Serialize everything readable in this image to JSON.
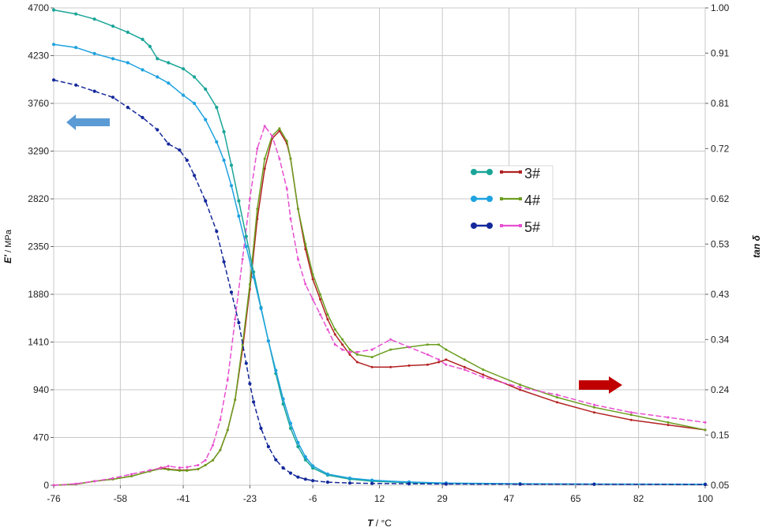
{
  "chart_data": {
    "type": "line",
    "x_axis": {
      "label_symbol": "T",
      "label_unit": "/ °C",
      "range": [
        -76,
        100
      ],
      "ticks": [
        -76,
        -58,
        -41,
        -23,
        -6,
        12,
        29,
        47,
        65,
        82,
        100
      ],
      "tick_labels": [
        "-76",
        "-58",
        "-41",
        "-23",
        "-6",
        "12",
        "29",
        "47",
        "65",
        "82",
        "100"
      ]
    },
    "y_left_axis": {
      "label_symbol": "E'",
      "label_unit": "/ MPa",
      "range": [
        0,
        4700
      ],
      "ticks": [
        0,
        470,
        940,
        1410,
        1880,
        2350,
        2820,
        3290,
        3760,
        4230,
        4700
      ],
      "tick_labels": [
        "0",
        "470",
        "940",
        "1410",
        "1880",
        "2350",
        "2820",
        "3290",
        "3760",
        "4230",
        "4700"
      ]
    },
    "y_right_axis": {
      "label": "tan δ",
      "range": [
        0.05,
        1.0
      ],
      "ticks": [
        0.05,
        0.15,
        0.24,
        0.34,
        0.43,
        0.53,
        0.62,
        0.72,
        0.81,
        0.91,
        1.0
      ],
      "tick_labels": [
        "0.05",
        "0.15",
        "0.24",
        "0.34",
        "0.43",
        "0.53",
        "0.62",
        "0.72",
        "0.81",
        "0.91",
        "1.00"
      ]
    },
    "grid": true,
    "legend": {
      "placement": "center-right",
      "entries": [
        {
          "label": "3#",
          "storage_color": "#1aa598",
          "tan_color": "#b22222"
        },
        {
          "label": "4#",
          "storage_color": "#1ea2e0",
          "tan_color": "#6b9e1f"
        },
        {
          "label": "5#",
          "storage_color": "#14289a",
          "tan_color": "#e84fd0"
        }
      ]
    },
    "annotations": [
      {
        "type": "arrow",
        "direction": "left",
        "meaning": "left axis (E')",
        "color": "#5b9bd5"
      },
      {
        "type": "arrow",
        "direction": "right",
        "meaning": "right axis (tan δ)",
        "color": "#c00000"
      }
    ],
    "storage_modulus_series": [
      {
        "name": "3#",
        "axis": "left",
        "color": "#1aa598",
        "x": [
          -76,
          -70,
          -65,
          -60,
          -56,
          -52,
          -50,
          -48,
          -45,
          -41,
          -38,
          -35,
          -32,
          -30,
          -28,
          -26,
          -24,
          -22,
          -20,
          -18,
          -16,
          -14,
          -12,
          -10,
          -8,
          -6,
          -2,
          4,
          10,
          20,
          30,
          50,
          70,
          100
        ],
        "y": [
          4680,
          4640,
          4590,
          4520,
          4460,
          4390,
          4320,
          4200,
          4160,
          4100,
          4020,
          3900,
          3720,
          3480,
          3150,
          2800,
          2450,
          2100,
          1750,
          1420,
          1100,
          800,
          560,
          380,
          250,
          170,
          100,
          60,
          40,
          25,
          18,
          12,
          10,
          8
        ]
      },
      {
        "name": "4#",
        "axis": "left",
        "color": "#1ea2e0",
        "x": [
          -76,
          -70,
          -65,
          -60,
          -56,
          -52,
          -48,
          -45,
          -41,
          -38,
          -35,
          -32,
          -30,
          -28,
          -26,
          -24,
          -22,
          -20,
          -18,
          -16,
          -14,
          -12,
          -10,
          -8,
          -6,
          -2,
          4,
          10,
          20,
          30,
          50,
          70,
          100
        ],
        "y": [
          4340,
          4310,
          4250,
          4200,
          4160,
          4090,
          4020,
          3960,
          3840,
          3760,
          3600,
          3380,
          3200,
          2950,
          2650,
          2350,
          2050,
          1740,
          1420,
          1130,
          850,
          610,
          420,
          280,
          190,
          110,
          70,
          50,
          32,
          22,
          15,
          12,
          10
        ]
      },
      {
        "name": "5#",
        "axis": "left",
        "color": "#14289a",
        "x": [
          -76,
          -70,
          -65,
          -60,
          -56,
          -52,
          -48,
          -45,
          -42,
          -40,
          -38,
          -35,
          -32,
          -30,
          -28,
          -26,
          -24,
          -23,
          -22,
          -20,
          -18,
          -16,
          -14,
          -12,
          -10,
          -8,
          -6,
          -2,
          4,
          10,
          20,
          30,
          50,
          70,
          100
        ],
        "y": [
          3990,
          3940,
          3880,
          3820,
          3720,
          3620,
          3500,
          3360,
          3300,
          3200,
          3050,
          2800,
          2500,
          2200,
          1900,
          1600,
          1200,
          1000,
          820,
          560,
          380,
          250,
          170,
          120,
          80,
          60,
          45,
          30,
          22,
          18,
          15,
          12,
          10,
          9,
          8
        ]
      }
    ],
    "tan_delta_series": [
      {
        "name": "3#",
        "axis": "right",
        "color": "#b22222",
        "x": [
          -76,
          -70,
          -65,
          -60,
          -55,
          -50,
          -47,
          -45,
          -42,
          -40,
          -37,
          -35,
          -33,
          -31,
          -29,
          -27,
          -25,
          -23,
          -21,
          -19,
          -17,
          -15,
          -13,
          -12,
          -10,
          -8,
          -6,
          -4,
          -2,
          0,
          2,
          4,
          6,
          10,
          15,
          20,
          25,
          28,
          30,
          35,
          40,
          50,
          60,
          70,
          80,
          90,
          100
        ],
        "y": [
          0.05,
          0.052,
          0.058,
          0.062,
          0.068,
          0.078,
          0.085,
          0.082,
          0.08,
          0.08,
          0.082,
          0.09,
          0.1,
          0.12,
          0.16,
          0.22,
          0.32,
          0.44,
          0.58,
          0.68,
          0.74,
          0.755,
          0.73,
          0.7,
          0.6,
          0.52,
          0.46,
          0.42,
          0.38,
          0.35,
          0.33,
          0.31,
          0.295,
          0.285,
          0.285,
          0.288,
          0.29,
          0.295,
          0.3,
          0.285,
          0.27,
          0.24,
          0.215,
          0.195,
          0.18,
          0.17,
          0.16
        ]
      },
      {
        "name": "4#",
        "axis": "right",
        "color": "#6b9e1f",
        "x": [
          -76,
          -70,
          -65,
          -60,
          -55,
          -50,
          -47,
          -45,
          -42,
          -40,
          -37,
          -35,
          -33,
          -31,
          -29,
          -27,
          -25,
          -23,
          -21,
          -19,
          -17,
          -15,
          -13,
          -12,
          -10,
          -8,
          -6,
          -4,
          -2,
          0,
          2,
          4,
          6,
          10,
          15,
          20,
          25,
          28,
          30,
          35,
          40,
          50,
          60,
          70,
          80,
          90,
          100
        ],
        "y": [
          0.05,
          0.052,
          0.058,
          0.062,
          0.068,
          0.078,
          0.083,
          0.081,
          0.079,
          0.079,
          0.082,
          0.09,
          0.1,
          0.12,
          0.16,
          0.22,
          0.33,
          0.45,
          0.6,
          0.7,
          0.745,
          0.76,
          0.735,
          0.7,
          0.6,
          0.53,
          0.47,
          0.43,
          0.39,
          0.36,
          0.34,
          0.32,
          0.31,
          0.305,
          0.32,
          0.325,
          0.33,
          0.33,
          0.32,
          0.3,
          0.28,
          0.25,
          0.225,
          0.205,
          0.19,
          0.175,
          0.16
        ]
      },
      {
        "name": "5#",
        "axis": "right",
        "color": "#e84fd0",
        "x": [
          -76,
          -70,
          -65,
          -60,
          -55,
          -50,
          -47,
          -45,
          -42,
          -40,
          -37,
          -35,
          -33,
          -31,
          -29,
          -27,
          -25,
          -23,
          -21,
          -19,
          -17,
          -15,
          -13,
          -12,
          -10,
          -8,
          -6,
          -4,
          -2,
          0,
          2,
          4,
          6,
          10,
          15,
          20,
          25,
          28,
          30,
          35,
          40,
          50,
          60,
          70,
          80,
          90,
          100
        ],
        "y": [
          0.05,
          0.053,
          0.058,
          0.064,
          0.072,
          0.08,
          0.084,
          0.088,
          0.085,
          0.086,
          0.09,
          0.1,
          0.13,
          0.18,
          0.26,
          0.38,
          0.5,
          0.62,
          0.72,
          0.765,
          0.745,
          0.7,
          0.64,
          0.58,
          0.5,
          0.45,
          0.42,
          0.39,
          0.36,
          0.33,
          0.32,
          0.315,
          0.315,
          0.32,
          0.34,
          0.325,
          0.31,
          0.3,
          0.29,
          0.28,
          0.265,
          0.245,
          0.23,
          0.21,
          0.195,
          0.185,
          0.175
        ]
      }
    ]
  }
}
